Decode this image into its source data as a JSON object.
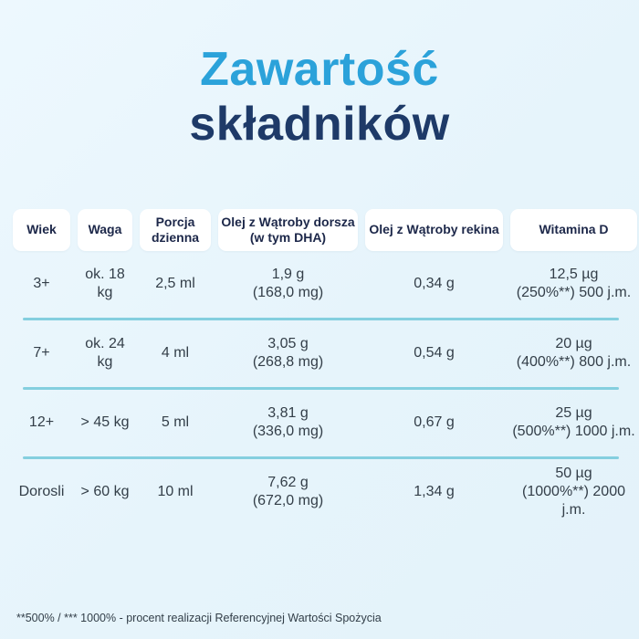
{
  "title": {
    "line1": "Zawartość",
    "line2": "składników"
  },
  "table": {
    "headers": [
      "Wiek",
      "Waga",
      "Porcja dzienna",
      "Olej z Wątroby dorsza (w tym DHA)",
      "Olej z Wątroby rekina",
      "Witamina D"
    ],
    "rows": [
      {
        "age": "3+",
        "weight": "ok. 18 kg",
        "portion": "2,5 ml",
        "cod_oil_line1": "1,9 g",
        "cod_oil_line2": "(168,0 mg)",
        "shark_oil": "0,34 g",
        "vitamin_d_line1": "12,5 µg",
        "vitamin_d_line2": "(250%**) 500 j.m."
      },
      {
        "age": "7+",
        "weight": "ok. 24 kg",
        "portion": "4 ml",
        "cod_oil_line1": "3,05 g",
        "cod_oil_line2": "(268,8 mg)",
        "shark_oil": "0,54 g",
        "vitamin_d_line1": "20 µg",
        "vitamin_d_line2": "(400%**) 800 j.m."
      },
      {
        "age": "12+",
        "weight": "> 45 kg",
        "portion": "5 ml",
        "cod_oil_line1": "3,81 g",
        "cod_oil_line2": "(336,0 mg)",
        "shark_oil": "0,67 g",
        "vitamin_d_line1": "25 µg",
        "vitamin_d_line2": "(500%**) 1000 j.m."
      },
      {
        "age": "Dorosli",
        "weight": "> 60 kg",
        "portion": "10 ml",
        "cod_oil_line1": "7,62 g",
        "cod_oil_line2": "(672,0 mg)",
        "shark_oil": "1,34 g",
        "vitamin_d_line1": "50 µg",
        "vitamin_d_line2": "(1000%**) 2000 j.m."
      }
    ]
  },
  "footnote": "**500% / *** 1000% - procent realizacji Referencyjnej Wartości Spożycia",
  "colors": {
    "background": "#e6f4fb",
    "title_accent": "#2ba2da",
    "title_dark": "#1e3a68",
    "header_cell_bg": "#ffffff",
    "header_text": "#1c2749",
    "data_text": "#333e48",
    "divider": "#84cfdf"
  },
  "chart_data": {
    "type": "table",
    "title": "Zawartość składników",
    "columns": [
      "Wiek",
      "Waga",
      "Porcja dzienna",
      "Olej z Wątroby dorsza (w tym DHA)",
      "Olej z Wątroby rekina",
      "Witamina D"
    ],
    "rows": [
      [
        "3+",
        "ok. 18 kg",
        "2,5 ml",
        "1,9 g (168,0 mg)",
        "0,34 g",
        "12,5 µg (250%**) 500 j.m."
      ],
      [
        "7+",
        "ok. 24 kg",
        "4 ml",
        "3,05 g (268,8 mg)",
        "0,54 g",
        "20 µg (400%**) 800 j.m."
      ],
      [
        "12+",
        "> 45 kg",
        "5 ml",
        "3,81 g (336,0 mg)",
        "0,67 g",
        "25 µg (500%**) 1000 j.m."
      ],
      [
        "Dorosli",
        "> 60 kg",
        "10 ml",
        "7,62 g (672,0 mg)",
        "1,34 g",
        "50 µg (1000%**) 2000 j.m."
      ]
    ],
    "footnote": "**500% / *** 1000% - procent realizacji Referencyjnej Wartości Spożycia"
  }
}
